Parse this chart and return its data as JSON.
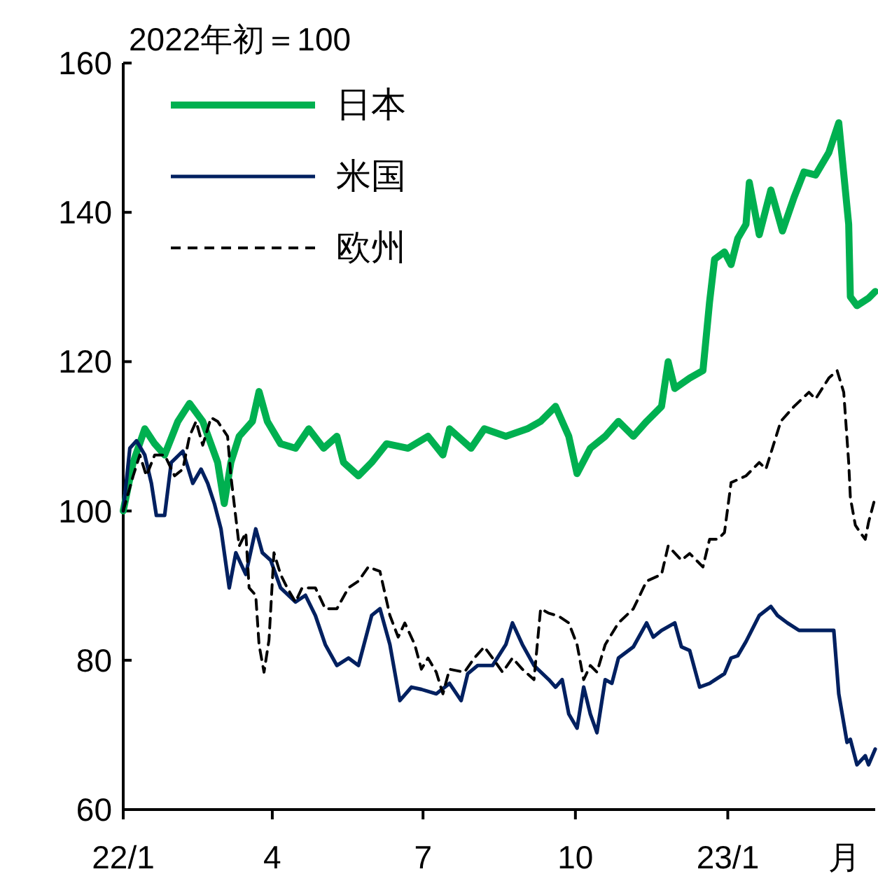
{
  "chart_data": {
    "type": "line",
    "title": "2022年初＝100",
    "xlabel": "月",
    "xlim": [
      "2022-01-01",
      "2023-03-31"
    ],
    "xticks": [
      {
        "value": "2022-01-01",
        "label": "22/1"
      },
      {
        "value": "2022-04-01",
        "label": "4"
      },
      {
        "value": "2022-07-01",
        "label": "7"
      },
      {
        "value": "2022-10-01",
        "label": "10"
      },
      {
        "value": "2023-01-01",
        "label": "23/1"
      }
    ],
    "ylim": [
      60,
      160
    ],
    "yticks": [
      60,
      80,
      100,
      120,
      140,
      160
    ],
    "grid": false,
    "legend": "top left",
    "marker": "none",
    "series": [
      {
        "name": "日本",
        "color": "#00b050",
        "line_style": "solid",
        "x": [
          "2022-01-01",
          "2022-01-07",
          "2022-01-14",
          "2022-01-20",
          "2022-01-26",
          "2022-02-03",
          "2022-02-10",
          "2022-02-18",
          "2022-02-27",
          "2022-03-03",
          "2022-03-07",
          "2022-03-12",
          "2022-03-20",
          "2022-03-24",
          "2022-03-29",
          "2022-04-06",
          "2022-04-15",
          "2022-04-23",
          "2022-05-02",
          "2022-05-10",
          "2022-05-14",
          "2022-05-23",
          "2022-05-31",
          "2022-06-09",
          "2022-06-22",
          "2022-07-04",
          "2022-07-13",
          "2022-07-17",
          "2022-07-30",
          "2022-08-07",
          "2022-08-20",
          "2022-09-02",
          "2022-09-10",
          "2022-09-19",
          "2022-09-27",
          "2022-10-02",
          "2022-10-10",
          "2022-10-19",
          "2022-10-27",
          "2022-11-05",
          "2022-11-13",
          "2022-11-22",
          "2022-11-26",
          "2022-11-30",
          "2022-12-09",
          "2022-12-17",
          "2022-12-21",
          "2022-12-24",
          "2022-12-30",
          "2023-01-03",
          "2023-01-07",
          "2023-01-12",
          "2023-01-14",
          "2023-01-20",
          "2023-01-27",
          "2023-02-03",
          "2023-02-10",
          "2023-02-16",
          "2023-02-23",
          "2023-03-03",
          "2023-03-09",
          "2023-03-15",
          "2023-03-16",
          "2023-03-20",
          "2023-03-27",
          "2023-03-31"
        ],
        "values": [
          100,
          106.5,
          111,
          109,
          107.5,
          112,
          114.4,
          112,
          106.5,
          101,
          106.5,
          110,
          112,
          116,
          112,
          109,
          108.4,
          111,
          108.4,
          110,
          106.5,
          104.7,
          106.5,
          109,
          108.4,
          110,
          107.5,
          111,
          108.4,
          111,
          110,
          111,
          112,
          114,
          110,
          105,
          108.4,
          110,
          112,
          110,
          112,
          114,
          120,
          116.4,
          117.8,
          118.8,
          128,
          133.7,
          134.7,
          133,
          136.5,
          138.4,
          144,
          137,
          143,
          137.5,
          142,
          145.4,
          145,
          148,
          152,
          138.4,
          128.7,
          127.5,
          128.5,
          129.4
        ]
      },
      {
        "name": "米国",
        "color": "#002060",
        "line_style": "solid",
        "x": [
          "2022-01-01",
          "2022-01-05",
          "2022-01-09",
          "2022-01-14",
          "2022-01-18",
          "2022-01-21",
          "2022-01-26",
          "2022-01-30",
          "2022-02-06",
          "2022-02-12",
          "2022-02-17",
          "2022-02-21",
          "2022-02-25",
          "2022-03-01",
          "2022-03-06",
          "2022-03-10",
          "2022-03-16",
          "2022-03-22",
          "2022-03-26",
          "2022-03-31",
          "2022-04-06",
          "2022-04-15",
          "2022-04-21",
          "2022-04-27",
          "2022-05-03",
          "2022-05-10",
          "2022-05-17",
          "2022-05-23",
          "2022-05-31",
          "2022-06-05",
          "2022-06-11",
          "2022-06-17",
          "2022-06-24",
          "2022-06-30",
          "2022-07-09",
          "2022-07-17",
          "2022-07-24",
          "2022-07-28",
          "2022-08-03",
          "2022-08-12",
          "2022-08-20",
          "2022-08-24",
          "2022-08-30",
          "2022-09-06",
          "2022-09-15",
          "2022-09-19",
          "2022-09-23",
          "2022-09-27",
          "2022-10-02",
          "2022-10-06",
          "2022-10-10",
          "2022-10-14",
          "2022-10-19",
          "2022-10-23",
          "2022-10-27",
          "2022-11-05",
          "2022-11-13",
          "2022-11-17",
          "2022-11-22",
          "2022-11-30",
          "2022-12-04",
          "2022-12-09",
          "2022-12-15",
          "2022-12-21",
          "2022-12-30",
          "2023-01-03",
          "2023-01-07",
          "2023-01-12",
          "2023-01-20",
          "2023-01-27",
          "2023-01-31",
          "2023-02-06",
          "2023-02-13",
          "2023-02-19",
          "2023-03-06",
          "2023-03-09",
          "2023-03-14",
          "2023-03-16",
          "2023-03-20",
          "2023-03-25",
          "2023-03-27",
          "2023-03-31"
        ],
        "values": [
          100,
          108.4,
          109.4,
          107.5,
          103.7,
          99.4,
          99.4,
          106.5,
          108,
          103.7,
          105.6,
          103.7,
          101,
          97.6,
          89.7,
          94.4,
          91.5,
          97.6,
          94.4,
          93.4,
          89.7,
          87.8,
          88.7,
          86,
          82.1,
          79.3,
          80.3,
          79.3,
          86,
          86.9,
          82.1,
          74.6,
          76.4,
          76.1,
          75.5,
          76.9,
          74.6,
          78.2,
          79.3,
          79.3,
          82.1,
          85,
          82.1,
          79.3,
          77.4,
          76.4,
          77.4,
          72.8,
          70.9,
          76.4,
          72.8,
          70.3,
          77.4,
          76.9,
          80.3,
          81.8,
          85,
          83.1,
          84,
          85,
          81.8,
          81.3,
          76.4,
          76.9,
          78.2,
          80.3,
          80.6,
          82.5,
          86,
          87.2,
          86,
          85,
          84,
          84,
          84,
          75.5,
          69,
          69.4,
          66,
          67.2,
          66,
          68.1
        ]
      },
      {
        "name": "欧州",
        "color": "#000000",
        "line_style": "dashed",
        "x": [
          "2022-01-01",
          "2022-01-07",
          "2022-01-11",
          "2022-01-15",
          "2022-01-20",
          "2022-01-26",
          "2022-02-01",
          "2022-02-06",
          "2022-02-10",
          "2022-02-14",
          "2022-02-18",
          "2022-02-23",
          "2022-02-27",
          "2022-03-05",
          "2022-03-07",
          "2022-03-12",
          "2022-03-16",
          "2022-03-18",
          "2022-03-22",
          "2022-03-24",
          "2022-03-27",
          "2022-03-30",
          "2022-04-02",
          "2022-04-06",
          "2022-04-10",
          "2022-04-15",
          "2022-04-19",
          "2022-04-27",
          "2022-05-03",
          "2022-05-10",
          "2022-05-17",
          "2022-05-23",
          "2022-05-29",
          "2022-06-05",
          "2022-06-11",
          "2022-06-16",
          "2022-06-20",
          "2022-06-26",
          "2022-06-30",
          "2022-07-04",
          "2022-07-09",
          "2022-07-13",
          "2022-07-17",
          "2022-07-26",
          "2022-08-01",
          "2022-08-07",
          "2022-08-12",
          "2022-08-18",
          "2022-08-24",
          "2022-08-30",
          "2022-09-06",
          "2022-09-10",
          "2022-09-15",
          "2022-09-21",
          "2022-09-27",
          "2022-10-02",
          "2022-10-06",
          "2022-10-10",
          "2022-10-14",
          "2022-10-19",
          "2022-10-27",
          "2022-11-05",
          "2022-11-13",
          "2022-11-22",
          "2022-11-26",
          "2022-12-04",
          "2022-12-09",
          "2022-12-17",
          "2022-12-21",
          "2022-12-26",
          "2022-12-30",
          "2023-01-03",
          "2023-01-12",
          "2023-01-20",
          "2023-01-24",
          "2023-02-02",
          "2023-02-10",
          "2023-02-19",
          "2023-02-23",
          "2023-03-03",
          "2023-03-08",
          "2023-03-12",
          "2023-03-15",
          "2023-03-16",
          "2023-03-19",
          "2023-03-22",
          "2023-03-25",
          "2023-03-27",
          "2023-03-31"
        ],
        "values": [
          100,
          104.7,
          107.5,
          104.7,
          107.5,
          107.5,
          104.7,
          105.6,
          110,
          112,
          108.8,
          112.5,
          112,
          110,
          104.7,
          95.3,
          97.1,
          89.7,
          88.7,
          82.1,
          78.4,
          82.7,
          94.4,
          91.5,
          89.7,
          87.8,
          89.7,
          89.7,
          86.9,
          86.9,
          89.7,
          90.6,
          92.5,
          91.9,
          86,
          83.1,
          85,
          82.1,
          78.8,
          80.3,
          78.4,
          75.5,
          78.8,
          78.4,
          80.3,
          81.8,
          80.3,
          78.4,
          80.3,
          78.8,
          77.4,
          86.9,
          86.3,
          85.9,
          85,
          82.1,
          77.4,
          79.3,
          78.4,
          82.1,
          85,
          86.9,
          90.6,
          91.5,
          95.3,
          93.4,
          94.3,
          92.5,
          96.2,
          96.2,
          97.1,
          103.8,
          104.7,
          106.5,
          105.6,
          112,
          114,
          115.9,
          115,
          117.8,
          118.8,
          115.9,
          106.5,
          101.8,
          98.1,
          97.1,
          96.2,
          98.5,
          101.8
        ]
      }
    ]
  }
}
